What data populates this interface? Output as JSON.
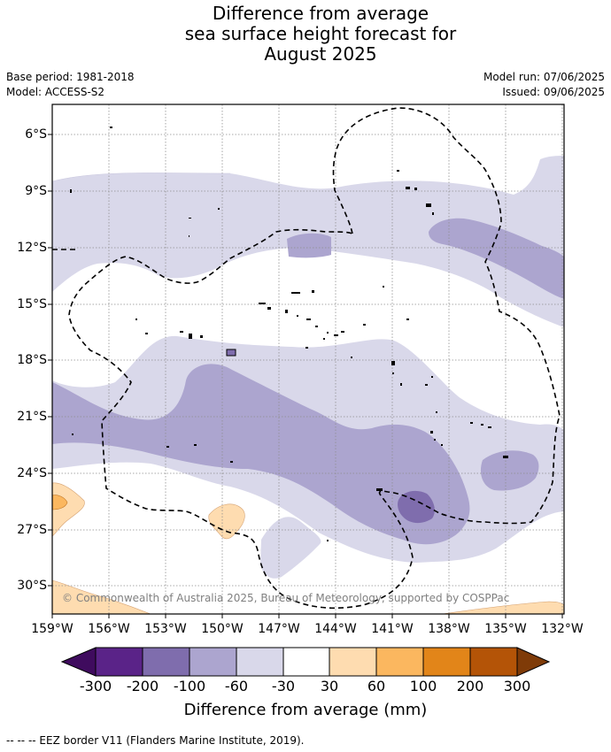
{
  "title": {
    "line1": "Difference from average",
    "line2": "sea surface height forecast for",
    "line3": "August 2025"
  },
  "meta": {
    "base_period": "Base period: 1981-2018",
    "model": "Model: ACCESS-S2",
    "model_run": "Model run: 07/06/2025",
    "issued": "Issued: 09/06/2025"
  },
  "axes": {
    "y_ticks": [
      "6°S",
      "9°S",
      "12°S",
      "15°S",
      "18°S",
      "21°S",
      "24°S",
      "27°S",
      "30°S"
    ],
    "x_ticks": [
      "159°W",
      "156°W",
      "153°W",
      "150°W",
      "147°W",
      "144°W",
      "141°W",
      "138°W",
      "135°W",
      "132°W"
    ]
  },
  "copyright": "© Commonwealth of Australia 2025, Bureau of Meteorology, supported by COSPPac",
  "colorbar": {
    "labels": [
      "-300",
      "-200",
      "-100",
      "-60",
      "-30",
      "30",
      "60",
      "100",
      "200",
      "300"
    ],
    "colors": [
      "#3f0b5e",
      "#5a2388",
      "#7f6dad",
      "#aca5cf",
      "#d9d8ea",
      "#ffffff",
      "#fedcb0",
      "#fbb75f",
      "#e28519",
      "#b45407",
      "#7f3b08"
    ],
    "title": "Difference from average (mm)"
  },
  "footnote": "--  --  -- EEZ border V11 (Flanders Marine Institute, 2019)."
}
